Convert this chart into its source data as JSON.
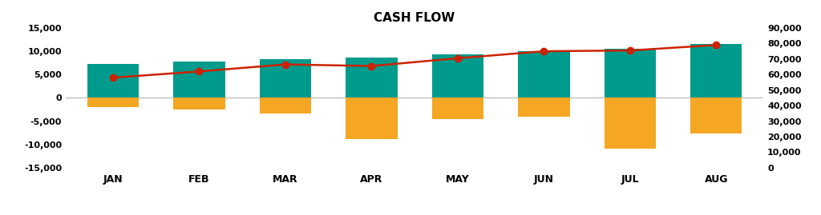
{
  "title": "CASH FLOW",
  "months": [
    "JAN",
    "FEB",
    "MAR",
    "APR",
    "MAY",
    "JUN",
    "JUL",
    "AUG"
  ],
  "cash_receipts": [
    7200,
    7800,
    8300,
    8700,
    9300,
    10100,
    10500,
    11500
  ],
  "cash_payments": [
    -2000,
    -2500,
    -3300,
    -8900,
    -4600,
    -4100,
    -10900,
    -7600
  ],
  "cash_balance": [
    58000,
    62000,
    66500,
    65500,
    70500,
    75000,
    75500,
    79000
  ],
  "receipts_color": "#009B8D",
  "payments_color": "#F5A623",
  "balance_color": "#CC2200",
  "ylim_left": [
    -15000,
    15000
  ],
  "ylim_right": [
    0,
    90000
  ],
  "yticks_left": [
    -15000,
    -10000,
    -5000,
    0,
    5000,
    10000,
    15000
  ],
  "yticks_right": [
    0,
    10000,
    20000,
    30000,
    40000,
    50000,
    60000,
    70000,
    80000,
    90000
  ],
  "background_color": "#FFFFFF",
  "bar_width": 0.6
}
